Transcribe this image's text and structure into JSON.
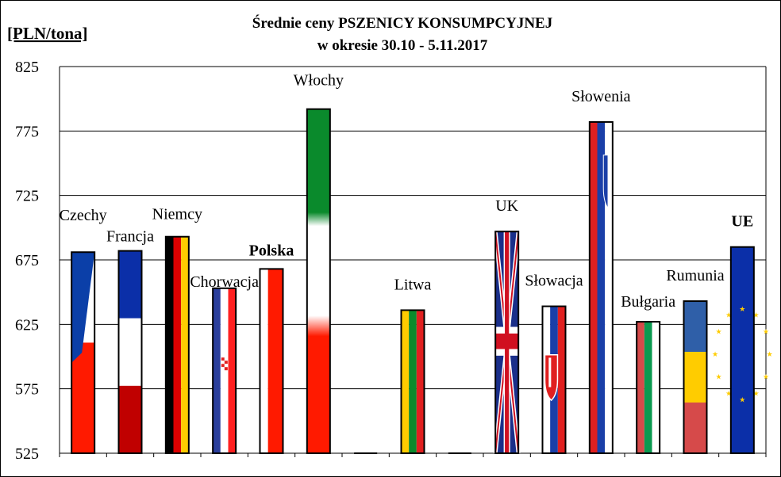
{
  "chart_data": {
    "type": "bar",
    "title": "Średnie ceny PSZENICY KONSUMPCYJNEJ",
    "subtitle": "w okresie  30.10 - 5.11.2017",
    "ylabel": "[PLN/tona]",
    "ylim": [
      525,
      825
    ],
    "yticks": [
      525,
      575,
      625,
      675,
      725,
      775,
      825
    ],
    "grid": true,
    "categories": [
      "Czechy",
      "Francja",
      "Niemcy",
      "Chorwacja",
      "Polska",
      "Włochy",
      "",
      "Litwa",
      "",
      "UK",
      "Słowacja",
      "Słowenia",
      "Bułgaria",
      "Rumunia",
      "UE"
    ],
    "values": [
      681,
      682,
      693,
      653,
      668,
      792,
      null,
      636,
      null,
      697,
      639,
      782,
      627,
      643,
      685
    ],
    "label_styles": [
      "normal",
      "normal",
      "normal",
      "normal",
      "bold",
      "normal",
      "normal",
      "normal",
      "normal",
      "normal",
      "normal",
      "normal",
      "normal",
      "normal",
      "bold-red"
    ],
    "flags": [
      "cz",
      "fr",
      "de",
      "hr",
      "pl",
      "it",
      "",
      "lt",
      "",
      "uk",
      "sk",
      "si",
      "bg",
      "ro",
      "eu"
    ],
    "colors": {
      "eu_label": "#cc0000",
      "grid": "#000000"
    }
  }
}
